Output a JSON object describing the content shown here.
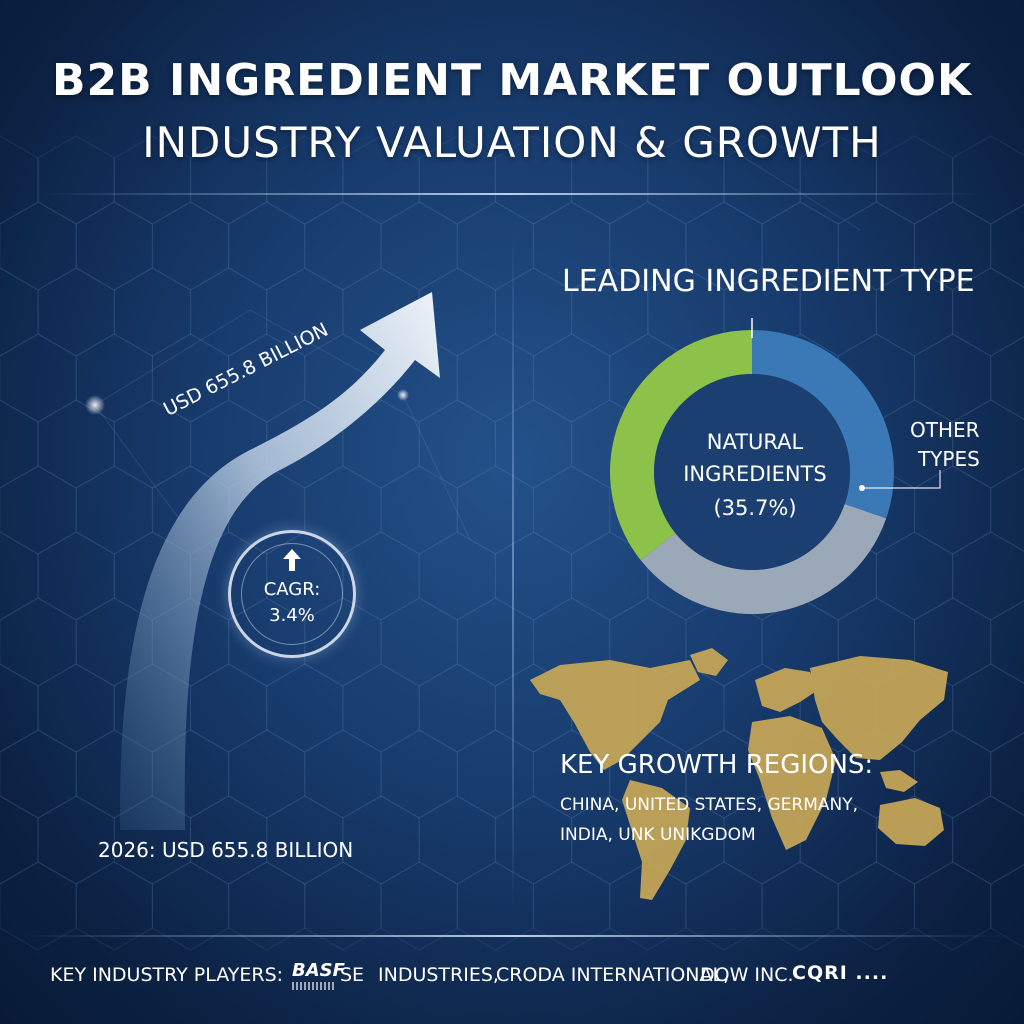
{
  "header": {
    "title_line1": "B2B INGREDIENT MARKET  OUTLOOK",
    "title_line2": "INDUSTRY VALUATION & GROWTH"
  },
  "growth": {
    "arrow_label": "USD 655.8 BILLION",
    "value_2026": "2026: USD 655.8 BILLION",
    "cagr_label": "CAGR:",
    "cagr_value": "3.4%"
  },
  "donut": {
    "title": "LEADING INGREDIENT TYPE",
    "center_line1": "NATURAL",
    "center_line2": "INGREDIENTS",
    "center_line3": "(35.7%)",
    "other_line1": "OTHER",
    "other_line2": "TYPES",
    "segments": [
      {
        "name": "natural-ingredients",
        "share": 0.357,
        "color": "#8cc14a"
      },
      {
        "name": "other-types",
        "share": 0.303,
        "color": "#3a78b6"
      },
      {
        "name": "remaining",
        "share": 0.34,
        "color": "#9aa8b8"
      }
    ]
  },
  "regions": {
    "title": "KEY GROWTH REGIONS:",
    "line1": "CHINA, UNITED STATES, GERMANY,",
    "line2": "INDIA, UNK UNIKGDOM",
    "map_color": "#c9a857"
  },
  "players": {
    "label": "KEY INDUSTRY PLAYERS:",
    "logo": "BASF",
    "item1": "SE",
    "item2": "INDUSTRIES,",
    "item3": "CRODA INTERNATIONAL,",
    "item4": "DOW INC.",
    "item5": "CQRI ...."
  },
  "colors": {
    "background": "#173a6b",
    "arrow": "#dfe8f2",
    "divider": "#8fb3da"
  }
}
